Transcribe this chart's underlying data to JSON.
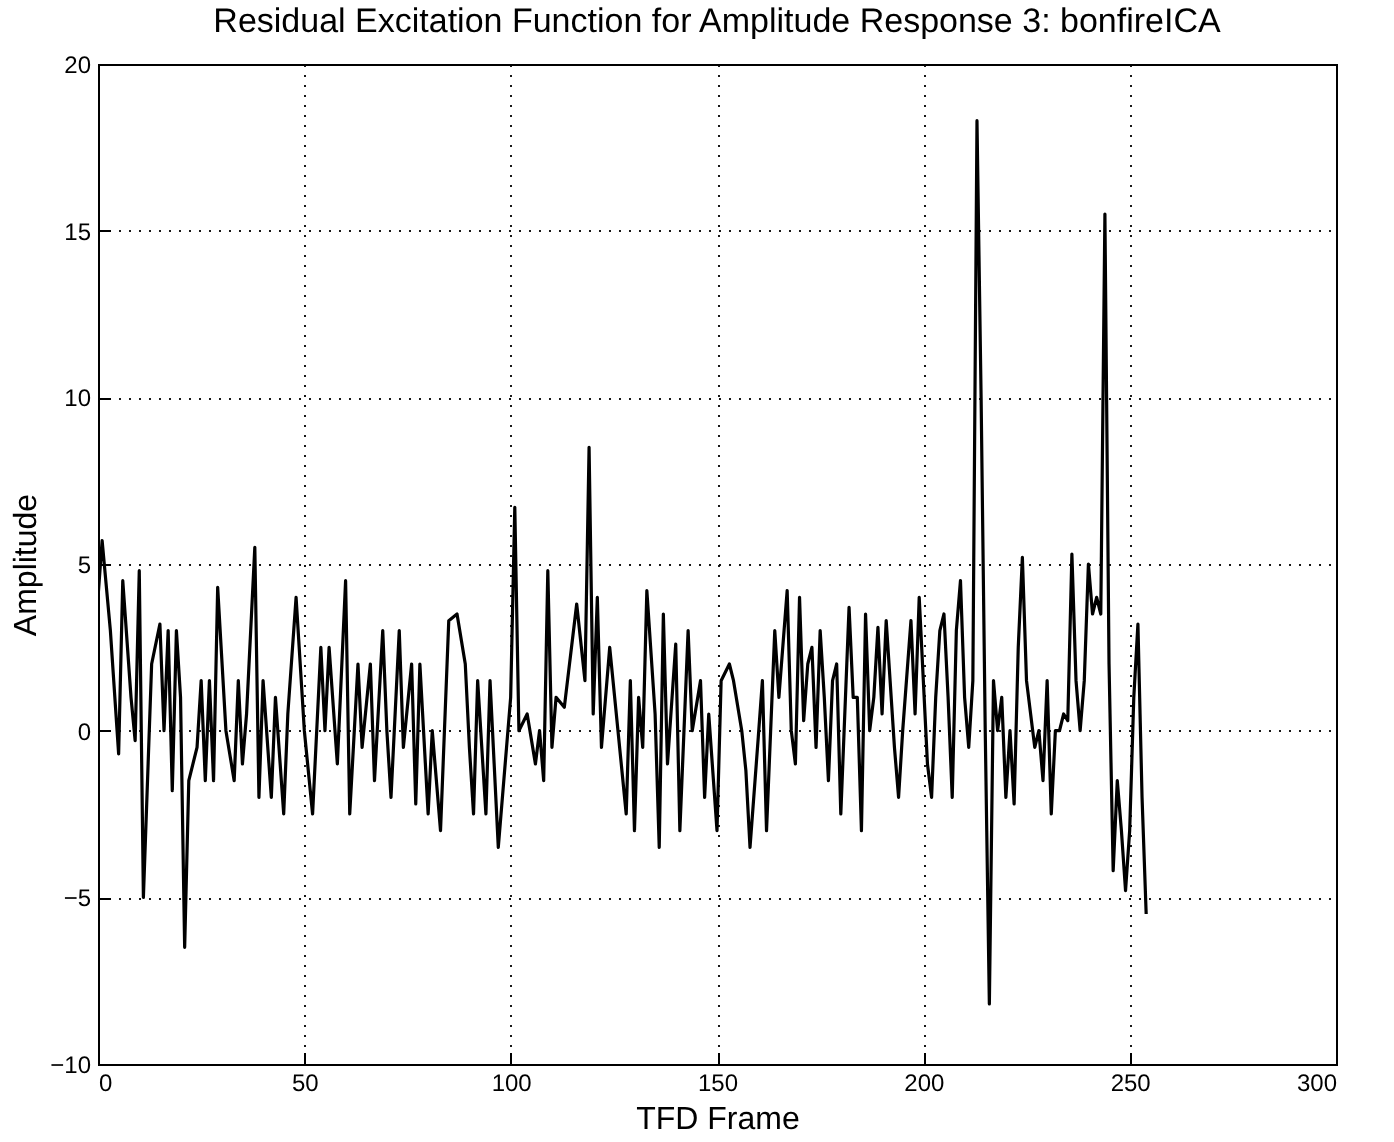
{
  "chart_data": {
    "type": "line",
    "title": "Residual Excitation Function for Amplitude Response 3: bonfireICA",
    "xlabel": "TFD Frame",
    "ylabel": "Amplitude",
    "x": [
      0,
      1,
      3,
      5,
      6,
      8,
      9,
      10,
      11,
      13,
      15,
      16,
      17,
      18,
      19,
      20,
      21,
      22,
      24,
      25,
      26,
      27,
      28,
      29,
      31,
      33,
      34,
      35,
      36,
      38,
      39,
      40,
      42,
      43,
      45,
      46,
      48,
      50,
      52,
      54,
      55,
      56,
      58,
      60,
      61,
      63,
      64,
      66,
      67,
      69,
      70,
      71,
      73,
      74,
      76,
      77,
      78,
      80,
      81,
      83,
      85,
      87,
      89,
      90,
      91,
      92,
      94,
      95,
      96,
      97,
      99,
      100,
      101,
      102,
      104,
      106,
      107,
      108,
      109,
      110,
      111,
      113,
      116,
      118,
      119,
      120,
      121,
      122,
      124,
      126,
      128,
      129,
      130,
      131,
      132,
      133,
      135,
      136,
      137,
      138,
      140,
      141,
      143,
      144,
      146,
      147,
      148,
      150,
      151,
      153,
      154,
      156,
      157,
      158,
      160,
      161,
      162,
      164,
      165,
      167,
      168,
      169,
      170,
      171,
      172,
      173,
      174,
      175,
      176,
      177,
      178,
      179,
      180,
      182,
      183,
      184,
      185,
      186,
      187,
      188,
      189,
      190,
      191,
      193,
      194,
      195,
      197,
      198,
      199,
      200,
      201,
      202,
      203,
      204,
      205,
      206,
      207,
      208,
      209,
      210,
      211,
      212,
      213,
      214,
      215,
      216,
      217,
      218,
      219,
      220,
      221,
      222,
      223,
      224,
      225,
      226,
      227,
      228,
      229,
      230,
      231,
      232,
      233,
      234,
      235,
      236,
      237,
      238,
      239,
      240,
      241,
      242,
      243,
      244,
      245,
      246,
      247,
      248,
      249,
      250,
      251,
      252,
      253,
      254
    ],
    "series": [
      {
        "color": "#000000",
        "values": [
          4,
          5.7,
          3,
          -0.7,
          4.5,
          1,
          -0.3,
          4.8,
          -5,
          2,
          3.2,
          0,
          3,
          -1.8,
          3,
          1,
          -6.5,
          -1.5,
          -0.5,
          1.5,
          -1.5,
          1.5,
          -1.5,
          4.3,
          0,
          -1.5,
          1.5,
          -1,
          0.5,
          5.5,
          -2,
          1.5,
          -2,
          1,
          -2.5,
          0.5,
          4,
          0,
          -2.5,
          2.5,
          0,
          2.5,
          -1,
          4.5,
          -2.5,
          2,
          -0.5,
          2,
          -1.5,
          3,
          0,
          -2,
          3,
          -0.5,
          2,
          -2.2,
          2,
          -2.5,
          0,
          -3,
          3.3,
          3.5,
          2,
          -0.5,
          -2.5,
          1.5,
          -2.5,
          1.5,
          -1,
          -3.5,
          -0.5,
          1,
          6.7,
          0,
          0.5,
          -1,
          0,
          -1.5,
          4.8,
          -0.5,
          1,
          0.7,
          3.8,
          1.5,
          8.5,
          0.5,
          4,
          -0.5,
          2.5,
          0,
          -2.5,
          1.5,
          -3,
          1,
          -0.5,
          4.2,
          0.5,
          -3.5,
          3.5,
          -1,
          2.6,
          -3,
          3,
          0,
          1.5,
          -2,
          0.5,
          -3,
          1.5,
          2,
          1.5,
          0,
          -1.2,
          -3.5,
          -0.2,
          1.5,
          -3,
          3,
          1,
          4.2,
          0,
          -1,
          4,
          0.3,
          2,
          2.5,
          -0.5,
          3,
          1,
          -1.5,
          1.5,
          2,
          -2.5,
          3.7,
          1,
          1,
          -3,
          3.5,
          0,
          1,
          3.1,
          0.5,
          3.3,
          -0.5,
          -2,
          0,
          3.3,
          0.5,
          4,
          1.5,
          -1,
          -2,
          1,
          3,
          3.5,
          1,
          -2,
          3,
          4.5,
          1,
          -0.5,
          1.5,
          18.3,
          10,
          0,
          -8.2,
          1.5,
          0,
          1,
          -2,
          0,
          -2.2,
          2.5,
          5.2,
          1.5,
          0.5,
          -0.5,
          0,
          -1.5,
          1.5,
          -2.5,
          0,
          0,
          0.5,
          0.3,
          5.3,
          1.5,
          0,
          1.5,
          5,
          3.5,
          4,
          3.5,
          15.5,
          2,
          -4.2,
          -1.5,
          -3,
          -4.8,
          -3,
          1,
          3.2,
          -2,
          -5.5
        ]
      }
    ],
    "xlim": [
      0,
      300
    ],
    "xticks": [
      0,
      50,
      100,
      150,
      200,
      250,
      300
    ],
    "ylim": [
      -10,
      20
    ],
    "yticks": [
      -10,
      -5,
      0,
      5,
      10,
      15,
      20
    ],
    "grid": true,
    "line_style": "solid",
    "marker": "none"
  }
}
